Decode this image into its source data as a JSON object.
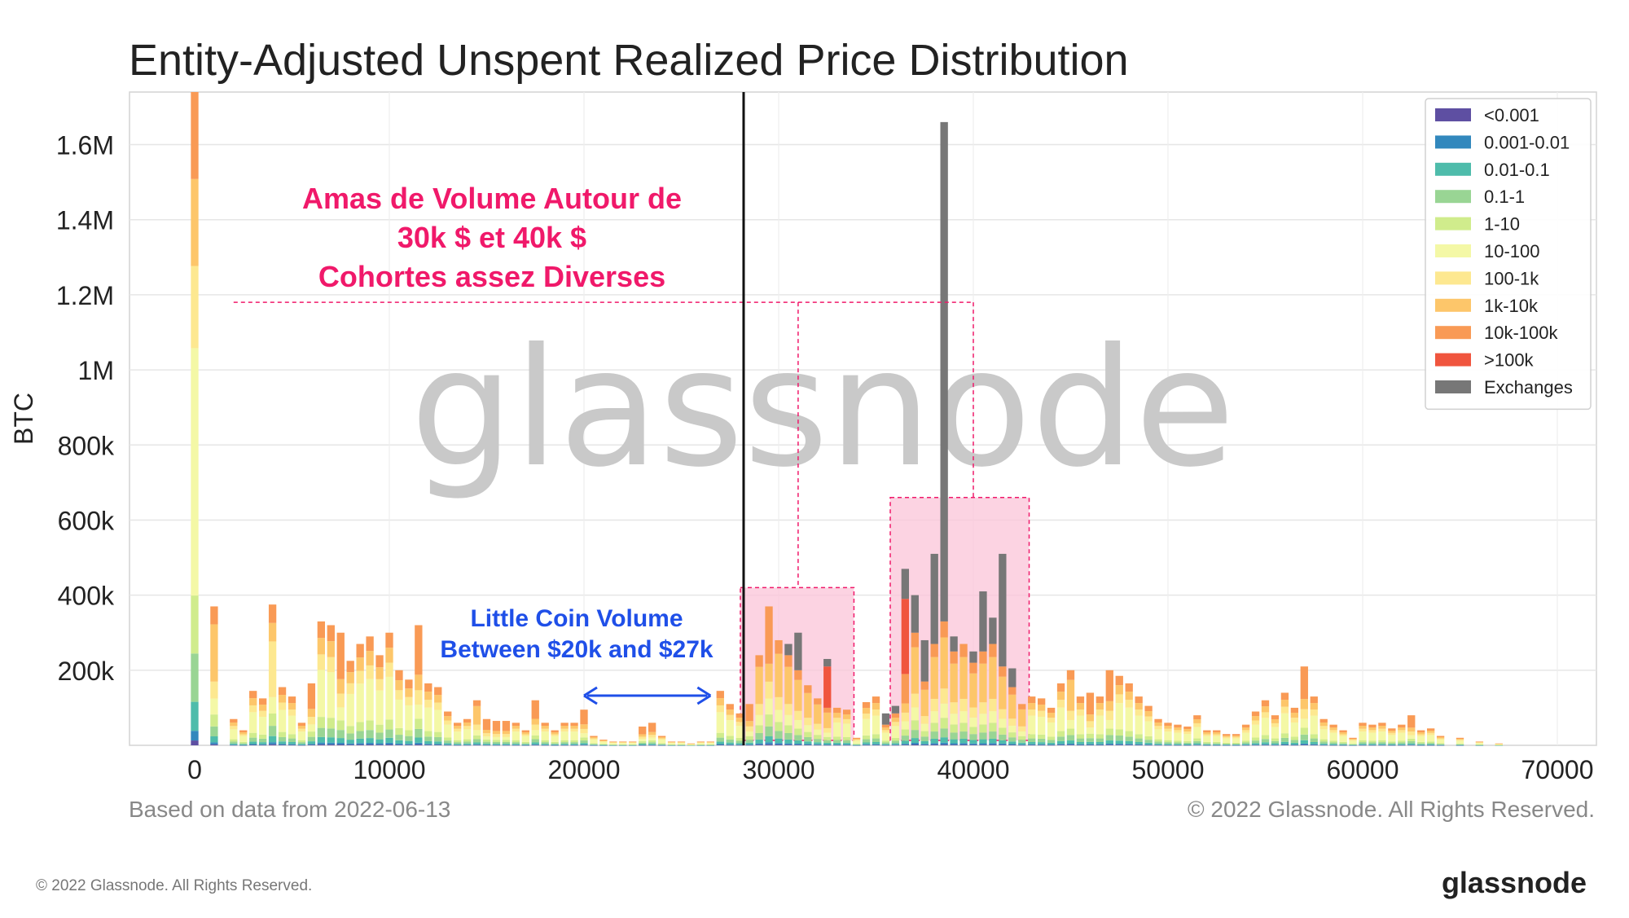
{
  "chart_data": {
    "type": "bar",
    "stacked": true,
    "title": "Entity-Adjusted Unspent Realized Price Distribution",
    "ylabel": "BTC",
    "xlabel": "",
    "xlim": [
      0,
      70000
    ],
    "ylim": [
      0,
      1740000
    ],
    "x_ticks": [
      0,
      10000,
      20000,
      30000,
      40000,
      50000,
      60000,
      70000
    ],
    "x_tick_labels": [
      "0",
      "10000",
      "20000",
      "30000",
      "40000",
      "50000",
      "60000",
      "70000"
    ],
    "y_ticks": [
      200000,
      400000,
      600000,
      800000,
      1000000,
      1200000,
      1400000,
      1600000
    ],
    "y_tick_labels": [
      "200k",
      "400k",
      "600k",
      "800k",
      "1M",
      "1.2M",
      "1.4M",
      "1.6M"
    ],
    "grid": true,
    "legend_position": "top-right",
    "legend": [
      {
        "name": "<0.001",
        "color": "#5e4fa2"
      },
      {
        "name": "0.001-0.01",
        "color": "#3288bd"
      },
      {
        "name": "0.01-0.1",
        "color": "#4ebcab"
      },
      {
        "name": "0.1-1",
        "color": "#99d594"
      },
      {
        "name": "1-10",
        "color": "#d0ec8c"
      },
      {
        "name": "10-100",
        "color": "#f4f8a6"
      },
      {
        "name": "100-1k",
        "color": "#fde890"
      },
      {
        "name": "1k-10k",
        "color": "#fdc66a"
      },
      {
        "name": "10k-100k",
        "color": "#f99a55"
      },
      {
        "name": ">100k",
        "color": "#f0553e"
      },
      {
        "name": "Exchanges",
        "color": "#777777"
      }
    ],
    "bars": [
      {
        "x": 0,
        "total": 1740000,
        "exchanges": 0,
        "big": 0,
        "dominant": "10-100"
      },
      {
        "x": 1000,
        "total": 370000,
        "exchanges": 0,
        "big": 0,
        "dominant": "1k-10k"
      },
      {
        "x": 2000,
        "total": 70000,
        "exchanges": 0,
        "big": 0,
        "dominant": "10-100"
      },
      {
        "x": 2500,
        "total": 40000,
        "exchanges": 0,
        "big": 0,
        "dominant": "10-100"
      },
      {
        "x": 3000,
        "total": 145000,
        "exchanges": 0,
        "big": 0,
        "dominant": "10-100"
      },
      {
        "x": 3500,
        "total": 125000,
        "exchanges": 0,
        "big": 0,
        "dominant": "10-100"
      },
      {
        "x": 4000,
        "total": 375000,
        "exchanges": 0,
        "big": 0,
        "dominant": "100-1k"
      },
      {
        "x": 4500,
        "total": 155000,
        "exchanges": 0,
        "big": 0,
        "dominant": "10-100"
      },
      {
        "x": 5000,
        "total": 130000,
        "exchanges": 0,
        "big": 0,
        "dominant": "10-100"
      },
      {
        "x": 5500,
        "total": 60000,
        "exchanges": 0,
        "big": 0,
        "dominant": "10-100"
      },
      {
        "x": 6000,
        "total": 165000,
        "exchanges": 0,
        "big": 0,
        "dominant": "10k-100k"
      },
      {
        "x": 6500,
        "total": 330000,
        "exchanges": 0,
        "big": 0,
        "dominant": "10-100"
      },
      {
        "x": 7000,
        "total": 320000,
        "exchanges": 0,
        "big": 0,
        "dominant": "10-100"
      },
      {
        "x": 7500,
        "total": 300000,
        "exchanges": 0,
        "big": 0,
        "dominant": "10k-100k"
      },
      {
        "x": 8000,
        "total": 225000,
        "exchanges": 0,
        "big": 0,
        "dominant": "10-100"
      },
      {
        "x": 8500,
        "total": 270000,
        "exchanges": 0,
        "big": 0,
        "dominant": "10-100"
      },
      {
        "x": 9000,
        "total": 290000,
        "exchanges": 0,
        "big": 0,
        "dominant": "10-100"
      },
      {
        "x": 9500,
        "total": 240000,
        "exchanges": 0,
        "big": 0,
        "dominant": "10-100"
      },
      {
        "x": 10000,
        "total": 300000,
        "exchanges": 0,
        "big": 0,
        "dominant": "10-100"
      },
      {
        "x": 10500,
        "total": 200000,
        "exchanges": 0,
        "big": 0,
        "dominant": "10-100"
      },
      {
        "x": 11000,
        "total": 175000,
        "exchanges": 0,
        "big": 0,
        "dominant": "10-100"
      },
      {
        "x": 11500,
        "total": 320000,
        "exchanges": 0,
        "big": 0,
        "dominant": "10k-100k"
      },
      {
        "x": 12000,
        "total": 165000,
        "exchanges": 0,
        "big": 0,
        "dominant": "10-100"
      },
      {
        "x": 12500,
        "total": 155000,
        "exchanges": 0,
        "big": 0,
        "dominant": "10-100"
      },
      {
        "x": 13000,
        "total": 90000,
        "exchanges": 0,
        "big": 0,
        "dominant": "10-100"
      },
      {
        "x": 13500,
        "total": 60000,
        "exchanges": 0,
        "big": 0,
        "dominant": "10-100"
      },
      {
        "x": 14000,
        "total": 70000,
        "exchanges": 0,
        "big": 0,
        "dominant": "10-100"
      },
      {
        "x": 14500,
        "total": 120000,
        "exchanges": 0,
        "big": 0,
        "dominant": "1k-10k"
      },
      {
        "x": 15000,
        "total": 70000,
        "exchanges": 0,
        "big": 0,
        "dominant": "10k-100k"
      },
      {
        "x": 15500,
        "total": 65000,
        "exchanges": 0,
        "big": 0,
        "dominant": "10k-100k"
      },
      {
        "x": 16000,
        "total": 65000,
        "exchanges": 0,
        "big": 0,
        "dominant": "10k-100k"
      },
      {
        "x": 16500,
        "total": 60000,
        "exchanges": 0,
        "big": 0,
        "dominant": "10-100"
      },
      {
        "x": 17000,
        "total": 40000,
        "exchanges": 0,
        "big": 0,
        "dominant": "10-100"
      },
      {
        "x": 17500,
        "total": 120000,
        "exchanges": 0,
        "big": 0,
        "dominant": "10k-100k"
      },
      {
        "x": 18000,
        "total": 60000,
        "exchanges": 0,
        "big": 0,
        "dominant": "10-100"
      },
      {
        "x": 18500,
        "total": 40000,
        "exchanges": 0,
        "big": 0,
        "dominant": "10-100"
      },
      {
        "x": 19000,
        "total": 60000,
        "exchanges": 0,
        "big": 0,
        "dominant": "10-100"
      },
      {
        "x": 19500,
        "total": 60000,
        "exchanges": 0,
        "big": 0,
        "dominant": "10-100"
      },
      {
        "x": 20000,
        "total": 95000,
        "exchanges": 0,
        "big": 0,
        "dominant": "10k-100k"
      },
      {
        "x": 20500,
        "total": 25000,
        "exchanges": 0,
        "big": 0,
        "dominant": "10-100"
      },
      {
        "x": 21000,
        "total": 15000,
        "exchanges": 0,
        "big": 0,
        "dominant": "10-100"
      },
      {
        "x": 21500,
        "total": 10000,
        "exchanges": 0,
        "big": 0,
        "dominant": "10-100"
      },
      {
        "x": 22000,
        "total": 10000,
        "exchanges": 0,
        "big": 0,
        "dominant": "10-100"
      },
      {
        "x": 22500,
        "total": 10000,
        "exchanges": 0,
        "big": 0,
        "dominant": "10-100"
      },
      {
        "x": 23000,
        "total": 50000,
        "exchanges": 0,
        "big": 0,
        "dominant": "10k-100k"
      },
      {
        "x": 23500,
        "total": 60000,
        "exchanges": 0,
        "big": 0,
        "dominant": "10k-100k"
      },
      {
        "x": 24000,
        "total": 25000,
        "exchanges": 0,
        "big": 0,
        "dominant": "10-100"
      },
      {
        "x": 24500,
        "total": 10000,
        "exchanges": 0,
        "big": 0,
        "dominant": "10-100"
      },
      {
        "x": 25000,
        "total": 10000,
        "exchanges": 0,
        "big": 0,
        "dominant": "10-100"
      },
      {
        "x": 25500,
        "total": 5000,
        "exchanges": 0,
        "big": 0,
        "dominant": "10-100"
      },
      {
        "x": 26000,
        "total": 10000,
        "exchanges": 0,
        "big": 0,
        "dominant": "10-100"
      },
      {
        "x": 26500,
        "total": 10000,
        "exchanges": 0,
        "big": 0,
        "dominant": "10-100"
      },
      {
        "x": 27000,
        "total": 145000,
        "exchanges": 0,
        "big": 0,
        "dominant": "10-100"
      },
      {
        "x": 27500,
        "total": 110000,
        "exchanges": 0,
        "big": 0,
        "dominant": "10-100"
      },
      {
        "x": 28000,
        "total": 85000,
        "exchanges": 0,
        "big": 0,
        "dominant": "10-100"
      },
      {
        "x": 28500,
        "total": 110000,
        "exchanges": 0,
        "big": 0,
        "dominant": "10k-100k"
      },
      {
        "x": 29000,
        "total": 240000,
        "exchanges": 0,
        "big": 0,
        "dominant": "1k-10k"
      },
      {
        "x": 29500,
        "total": 370000,
        "exchanges": 0,
        "big": 0,
        "dominant": "10k-100k"
      },
      {
        "x": 30000,
        "total": 280000,
        "exchanges": 0,
        "big": 0,
        "dominant": "1k-10k"
      },
      {
        "x": 30500,
        "total": 270000,
        "exchanges": 30000,
        "big": 0,
        "dominant": "1k-10k"
      },
      {
        "x": 31000,
        "total": 300000,
        "exchanges": 100000,
        "big": 0,
        "dominant": "1k-10k"
      },
      {
        "x": 31500,
        "total": 160000,
        "exchanges": 0,
        "big": 0,
        "dominant": "1k-10k"
      },
      {
        "x": 32000,
        "total": 125000,
        "exchanges": 0,
        "big": 0,
        "dominant": "1k-10k"
      },
      {
        "x": 32500,
        "total": 230000,
        "exchanges": 20000,
        "big": 110000,
        "dominant": "1k-10k"
      },
      {
        "x": 33000,
        "total": 100000,
        "exchanges": 0,
        "big": 0,
        "dominant": "10-100"
      },
      {
        "x": 33500,
        "total": 95000,
        "exchanges": 0,
        "big": 0,
        "dominant": "10-100"
      },
      {
        "x": 34000,
        "total": 20000,
        "exchanges": 0,
        "big": 0,
        "dominant": "10-100"
      },
      {
        "x": 34500,
        "total": 115000,
        "exchanges": 0,
        "big": 0,
        "dominant": "10-100"
      },
      {
        "x": 35000,
        "total": 130000,
        "exchanges": 0,
        "big": 0,
        "dominant": "10-100"
      },
      {
        "x": 35500,
        "total": 85000,
        "exchanges": 30000,
        "big": 0,
        "dominant": "10-100"
      },
      {
        "x": 36000,
        "total": 105000,
        "exchanges": 20000,
        "big": 0,
        "dominant": "10-100"
      },
      {
        "x": 36500,
        "total": 470000,
        "exchanges": 80000,
        "big": 200000,
        "dominant": "10k-100k"
      },
      {
        "x": 37000,
        "total": 400000,
        "exchanges": 100000,
        "big": 0,
        "dominant": "1k-10k"
      },
      {
        "x": 37500,
        "total": 280000,
        "exchanges": 110000,
        "big": 0,
        "dominant": "1k-10k"
      },
      {
        "x": 38000,
        "total": 510000,
        "exchanges": 240000,
        "big": 0,
        "dominant": "1k-10k"
      },
      {
        "x": 38500,
        "total": 1660000,
        "exchanges": 1330000,
        "big": 0,
        "dominant": "1k-10k"
      },
      {
        "x": 39000,
        "total": 290000,
        "exchanges": 40000,
        "big": 0,
        "dominant": "1k-10k"
      },
      {
        "x": 39500,
        "total": 270000,
        "exchanges": 0,
        "big": 0,
        "dominant": "1k-10k"
      },
      {
        "x": 40000,
        "total": 250000,
        "exchanges": 30000,
        "big": 0,
        "dominant": "1k-10k"
      },
      {
        "x": 40500,
        "total": 410000,
        "exchanges": 160000,
        "big": 0,
        "dominant": "1k-10k"
      },
      {
        "x": 41000,
        "total": 340000,
        "exchanges": 70000,
        "big": 0,
        "dominant": "1k-10k"
      },
      {
        "x": 41500,
        "total": 510000,
        "exchanges": 300000,
        "big": 0,
        "dominant": "1k-10k"
      },
      {
        "x": 42000,
        "total": 205000,
        "exchanges": 50000,
        "big": 0,
        "dominant": "1k-10k"
      },
      {
        "x": 42500,
        "total": 110000,
        "exchanges": 0,
        "big": 0,
        "dominant": "1k-10k"
      },
      {
        "x": 43000,
        "total": 130000,
        "exchanges": 0,
        "big": 0,
        "dominant": "10-100"
      },
      {
        "x": 43500,
        "total": 125000,
        "exchanges": 0,
        "big": 0,
        "dominant": "10-100"
      },
      {
        "x": 44000,
        "total": 100000,
        "exchanges": 0,
        "big": 0,
        "dominant": "10-100"
      },
      {
        "x": 44500,
        "total": 165000,
        "exchanges": 0,
        "big": 0,
        "dominant": "10-100"
      },
      {
        "x": 45000,
        "total": 200000,
        "exchanges": 0,
        "big": 0,
        "dominant": "1k-10k"
      },
      {
        "x": 45500,
        "total": 130000,
        "exchanges": 0,
        "big": 0,
        "dominant": "10-100"
      },
      {
        "x": 46000,
        "total": 140000,
        "exchanges": 0,
        "big": 0,
        "dominant": "10k-100k"
      },
      {
        "x": 46500,
        "total": 130000,
        "exchanges": 0,
        "big": 0,
        "dominant": "10-100"
      },
      {
        "x": 47000,
        "total": 200000,
        "exchanges": 0,
        "big": 0,
        "dominant": "10k-100k"
      },
      {
        "x": 47500,
        "total": 185000,
        "exchanges": 0,
        "big": 0,
        "dominant": "10-100"
      },
      {
        "x": 48000,
        "total": 165000,
        "exchanges": 0,
        "big": 0,
        "dominant": "10-100"
      },
      {
        "x": 48500,
        "total": 130000,
        "exchanges": 0,
        "big": 0,
        "dominant": "10-100"
      },
      {
        "x": 49000,
        "total": 105000,
        "exchanges": 0,
        "big": 0,
        "dominant": "10-100"
      },
      {
        "x": 49500,
        "total": 70000,
        "exchanges": 0,
        "big": 0,
        "dominant": "10-100"
      },
      {
        "x": 50000,
        "total": 60000,
        "exchanges": 0,
        "big": 0,
        "dominant": "10-100"
      },
      {
        "x": 50500,
        "total": 55000,
        "exchanges": 0,
        "big": 0,
        "dominant": "10-100"
      },
      {
        "x": 51000,
        "total": 50000,
        "exchanges": 0,
        "big": 0,
        "dominant": "10-100"
      },
      {
        "x": 51500,
        "total": 80000,
        "exchanges": 0,
        "big": 0,
        "dominant": "10-100"
      },
      {
        "x": 52000,
        "total": 40000,
        "exchanges": 0,
        "big": 0,
        "dominant": "10-100"
      },
      {
        "x": 52500,
        "total": 40000,
        "exchanges": 0,
        "big": 0,
        "dominant": "10-100"
      },
      {
        "x": 53000,
        "total": 30000,
        "exchanges": 0,
        "big": 0,
        "dominant": "10-100"
      },
      {
        "x": 53500,
        "total": 30000,
        "exchanges": 0,
        "big": 0,
        "dominant": "10-100"
      },
      {
        "x": 54000,
        "total": 55000,
        "exchanges": 0,
        "big": 0,
        "dominant": "10-100"
      },
      {
        "x": 54500,
        "total": 90000,
        "exchanges": 0,
        "big": 0,
        "dominant": "10-100"
      },
      {
        "x": 55000,
        "total": 120000,
        "exchanges": 0,
        "big": 0,
        "dominant": "10-100"
      },
      {
        "x": 55500,
        "total": 80000,
        "exchanges": 0,
        "big": 0,
        "dominant": "10-100"
      },
      {
        "x": 56000,
        "total": 140000,
        "exchanges": 0,
        "big": 0,
        "dominant": "10-100"
      },
      {
        "x": 56500,
        "total": 100000,
        "exchanges": 0,
        "big": 0,
        "dominant": "10-100"
      },
      {
        "x": 57000,
        "total": 210000,
        "exchanges": 0,
        "big": 0,
        "dominant": "10k-100k"
      },
      {
        "x": 57500,
        "total": 130000,
        "exchanges": 0,
        "big": 0,
        "dominant": "10-100"
      },
      {
        "x": 58000,
        "total": 70000,
        "exchanges": 0,
        "big": 0,
        "dominant": "10-100"
      },
      {
        "x": 58500,
        "total": 55000,
        "exchanges": 0,
        "big": 0,
        "dominant": "10-100"
      },
      {
        "x": 59000,
        "total": 40000,
        "exchanges": 0,
        "big": 0,
        "dominant": "10-100"
      },
      {
        "x": 59500,
        "total": 20000,
        "exchanges": 0,
        "big": 0,
        "dominant": "10-100"
      },
      {
        "x": 60000,
        "total": 60000,
        "exchanges": 0,
        "big": 0,
        "dominant": "10-100"
      },
      {
        "x": 60500,
        "total": 55000,
        "exchanges": 0,
        "big": 0,
        "dominant": "10-100"
      },
      {
        "x": 61000,
        "total": 60000,
        "exchanges": 0,
        "big": 0,
        "dominant": "10-100"
      },
      {
        "x": 61500,
        "total": 45000,
        "exchanges": 0,
        "big": 0,
        "dominant": "10-100"
      },
      {
        "x": 62000,
        "total": 55000,
        "exchanges": 0,
        "big": 0,
        "dominant": "10-100"
      },
      {
        "x": 62500,
        "total": 80000,
        "exchanges": 0,
        "big": 0,
        "dominant": "10k-100k"
      },
      {
        "x": 63000,
        "total": 40000,
        "exchanges": 0,
        "big": 0,
        "dominant": "10-100"
      },
      {
        "x": 63500,
        "total": 45000,
        "exchanges": 0,
        "big": 0,
        "dominant": "10-100"
      },
      {
        "x": 64000,
        "total": 25000,
        "exchanges": 0,
        "big": 0,
        "dominant": "10-100"
      },
      {
        "x": 65000,
        "total": 20000,
        "exchanges": 0,
        "big": 0,
        "dominant": "10-100"
      },
      {
        "x": 66000,
        "total": 10000,
        "exchanges": 0,
        "big": 0,
        "dominant": "10-100"
      },
      {
        "x": 67000,
        "total": 5000,
        "exchanges": 0,
        "big": 0,
        "dominant": "10-100"
      }
    ],
    "vertical_line_x": 28200,
    "highlight_ranges": [
      [
        28200,
        33700
      ],
      [
        35900,
        42700
      ]
    ],
    "arrow_range": [
      20000,
      26500
    ],
    "annotations": {
      "pink_text_lines": [
        "Amas de Volume Autour de",
        "30k $ et 40k $",
        "Cohortes assez Diverses"
      ],
      "blue_text_lines": [
        "Little Coin Volume",
        "Between $20k and $27k"
      ]
    }
  },
  "watermark": "glassnode",
  "footer": {
    "based_on": "Based on data from 2022-06-13",
    "copyright_chart": "© 2022 Glassnode. All Rights Reserved.",
    "copyright_page": "© 2022 Glassnode. All Rights Reserved.",
    "brand": "glassnode"
  },
  "colors": {
    "annotation_pink": "#f0196a",
    "annotation_blue": "#1f4fe8",
    "highlight_fill": "#fbc4d8",
    "vertical_line": "#111111"
  }
}
